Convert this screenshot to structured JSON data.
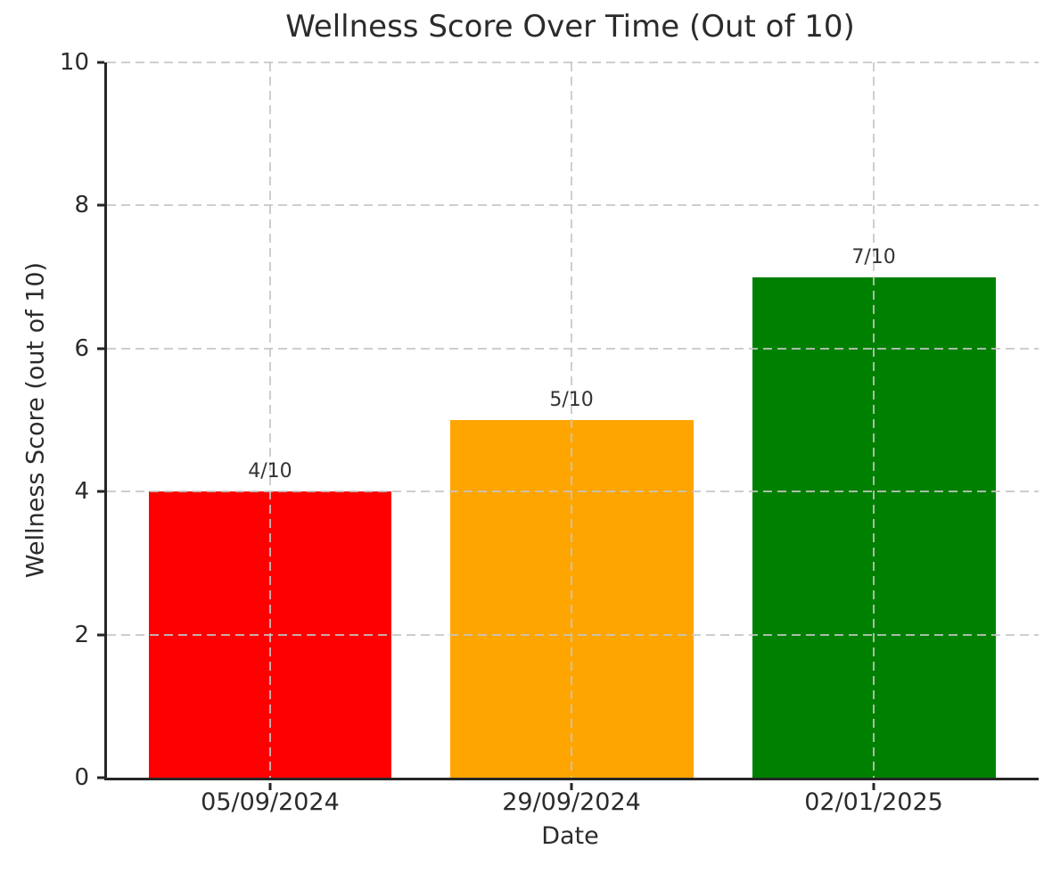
{
  "chart_data": {
    "type": "bar",
    "title": "Wellness Score Over Time (Out of 10)",
    "xlabel": "Date",
    "ylabel": "Wellness Score (out of 10)",
    "categories": [
      "05/09/2024",
      "29/09/2024",
      "02/01/2025"
    ],
    "values": [
      4,
      5,
      7
    ],
    "bar_labels": [
      "4/10",
      "5/10",
      "7/10"
    ],
    "bar_colors": [
      "#ff0000",
      "#ffa500",
      "#008000"
    ],
    "ylim": [
      0,
      10
    ],
    "yticks": [
      0,
      2,
      4,
      6,
      8,
      10
    ],
    "ytick_labels": [
      "0",
      "2",
      "4",
      "6",
      "8",
      "10"
    ],
    "grid": "dashed",
    "grid_color": "#c6c6c6",
    "spine_color": "#262626",
    "text_color": "#2b2b2b",
    "background": "#ffffff",
    "legend": "none"
  }
}
